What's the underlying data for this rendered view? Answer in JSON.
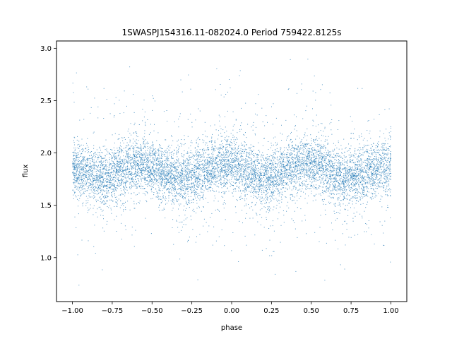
{
  "chart_data": {
    "type": "scatter",
    "title": "1SWASPJ154316.11-082024.0 Period 759422.8125s",
    "xlabel": "phase",
    "ylabel": "flux",
    "xlim": [
      -1.1,
      1.1
    ],
    "ylim": [
      0.58,
      3.07
    ],
    "x_ticks": [
      -1.0,
      -0.75,
      -0.5,
      -0.25,
      0.0,
      0.25,
      0.5,
      0.75,
      1.0
    ],
    "x_tick_labels": [
      "−1.00",
      "−0.75",
      "−0.50",
      "−0.25",
      "0.00",
      "0.25",
      "0.50",
      "0.75",
      "1.00"
    ],
    "y_ticks": [
      1.0,
      1.5,
      2.0,
      2.5,
      3.0
    ],
    "y_tick_labels": [
      "1.0",
      "1.5",
      "2.0",
      "2.5",
      "3.0"
    ],
    "grid": false,
    "marker_color": "#1f77b4",
    "series": [
      {
        "phase_range": [
          -1.0,
          1.0
        ],
        "flux_profile": {
          "phase": [
            -1.0,
            -0.9,
            -0.8,
            -0.7,
            -0.6,
            -0.5,
            -0.4,
            -0.3,
            -0.2,
            -0.1,
            0.0,
            0.1,
            0.2,
            0.3,
            0.4,
            0.5,
            0.6,
            0.7,
            0.8,
            0.9,
            1.0
          ],
          "median_flux": [
            1.84,
            1.8,
            1.76,
            1.84,
            1.9,
            1.86,
            1.78,
            1.75,
            1.8,
            1.86,
            1.9,
            1.82,
            1.76,
            1.8,
            1.88,
            1.9,
            1.84,
            1.76,
            1.8,
            1.84,
            1.86
          ]
        },
        "flux_range": [
          0.7,
          2.9
        ]
      }
    ]
  }
}
